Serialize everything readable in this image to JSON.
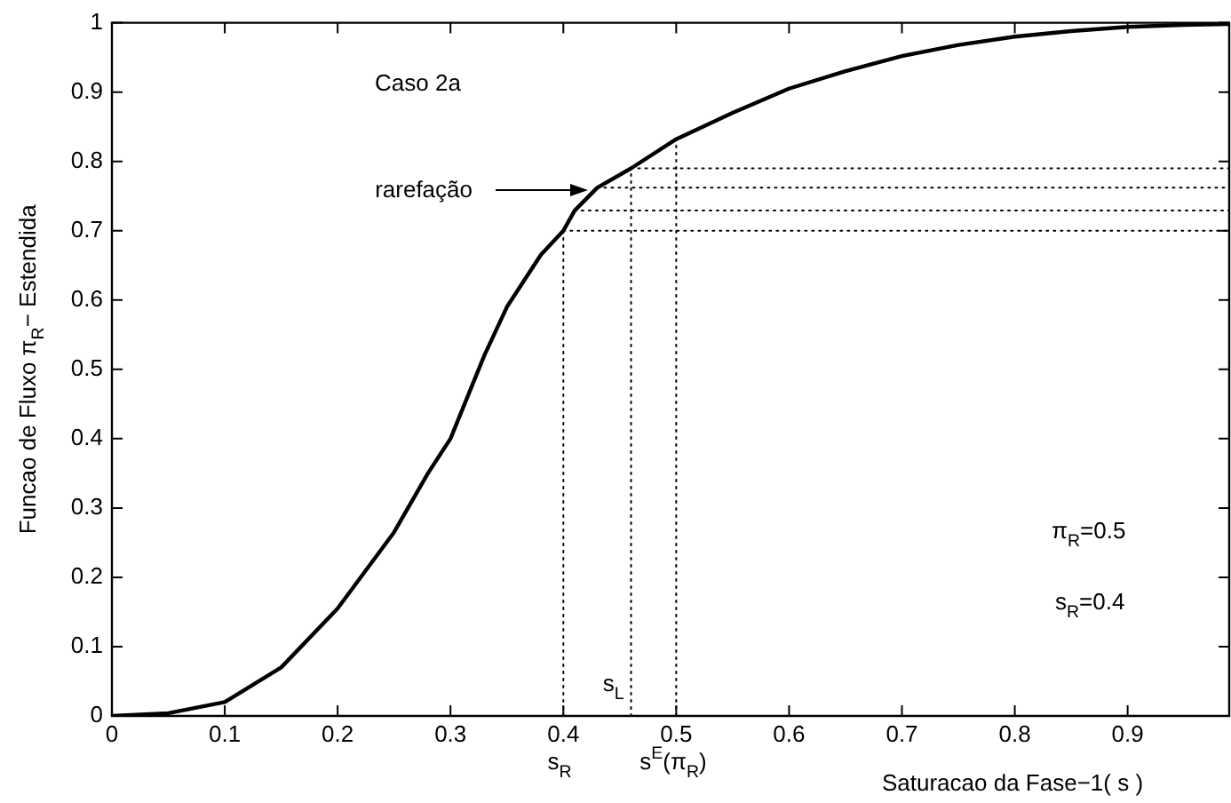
{
  "chart_data": {
    "type": "line",
    "xlabel": "Saturacao da Fase−1( s )",
    "ylabel": "Funcao de Fluxo π$_{R}$− Estendida",
    "annotations": [
      "Caso 2a",
      "π$_{R}$=0.5",
      "s$_{R}$=0.4",
      "rarefação",
      "s$_{R}$",
      "s$^{E}$(π$_{R}$)",
      {
        "text": "s$_{L}$",
        "x": 0.46,
        "y": 0.02
      }
    ],
    "series": [
      {
        "color": "#000000",
        "line_style": "solid",
        "x": [
          0,
          0.05,
          0.1,
          0.15,
          0.2,
          0.25,
          0.28,
          0.3,
          0.33,
          0.35,
          0.38,
          0.4,
          0.41,
          0.43,
          0.46,
          0.5,
          0.55,
          0.6,
          0.65,
          0.7,
          0.75,
          0.8,
          0.85,
          0.9,
          0.95,
          0.99
        ],
        "values": [
          0,
          0.004,
          0.02,
          0.07,
          0.155,
          0.265,
          0.35,
          0.4,
          0.52,
          0.59,
          0.665,
          0.7,
          0.729,
          0.762,
          0.79,
          0.832,
          0.87,
          0.905,
          0.93,
          0.952,
          0.968,
          0.98,
          0.988,
          0.994,
          0.997,
          0.998
        ]
      },
      {
        "color": "#000000",
        "line_style": "dotted",
        "x": [
          0.4,
          0.4
        ],
        "values": [
          0,
          0.7
        ]
      },
      {
        "color": "#000000",
        "line_style": "dotted",
        "x": [
          0.46,
          0.46
        ],
        "values": [
          0,
          0.79
        ]
      },
      {
        "color": "#000000",
        "line_style": "dotted",
        "x": [
          0.5,
          0.5
        ],
        "values": [
          0,
          0.832
        ]
      },
      {
        "color": "#000000",
        "line_style": "dotted",
        "x": [
          0.4,
          0.99
        ],
        "values": [
          0.7,
          0.7
        ]
      },
      {
        "color": "#000000",
        "line_style": "dotted",
        "x": [
          0.41,
          0.99
        ],
        "values": [
          0.729,
          0.729
        ]
      },
      {
        "color": "#000000",
        "line_style": "dotted",
        "x": [
          0.43,
          0.99
        ],
        "values": [
          0.762,
          0.762
        ]
      },
      {
        "color": "#000000",
        "line_style": "dotted",
        "x": [
          0.46,
          0.99
        ],
        "values": [
          0.79,
          0.79
        ]
      }
    ],
    "xlim": [
      0,
      0.99
    ],
    "ylim": [
      0,
      1
    ],
    "xticks": [
      0,
      0.1,
      0.2,
      0.3,
      0.4,
      0.5,
      0.6,
      0.7,
      0.8,
      0.9
    ],
    "yticks": [
      0,
      0.1,
      0.2,
      0.3,
      0.4,
      0.5,
      0.6,
      0.7,
      0.8,
      0.9,
      1
    ],
    "grid": false,
    "legend": false,
    "marker": "none"
  }
}
